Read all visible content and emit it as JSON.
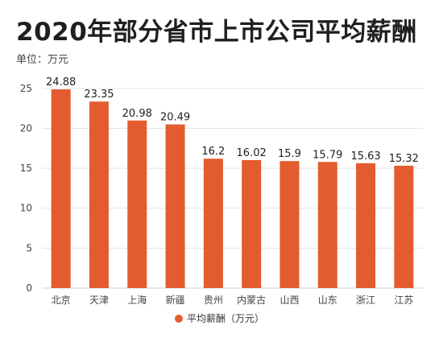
{
  "title": "2020年部分省市上市公司平均薪酬",
  "unit_label": "单位：万元",
  "colors": {
    "bar": "#e35c2f",
    "grid": "#e3e3e3",
    "axis_text": "#444444"
  },
  "chart_data": {
    "type": "bar",
    "title": "2020年部分省市上市公司平均薪酬",
    "categories": [
      "北京",
      "天津",
      "上海",
      "新疆",
      "贵州",
      "内蒙古",
      "山西",
      "山东",
      "浙江",
      "江苏"
    ],
    "value_labels": [
      "24.88",
      "23.35",
      "20.98",
      "20.49",
      "16.2",
      "16.02",
      "15.9",
      "15.79",
      "15.63",
      "15.32"
    ],
    "series": [
      {
        "name": "平均薪酬（万元）",
        "values": [
          24.88,
          23.35,
          20.98,
          20.49,
          16.2,
          16.02,
          15.9,
          15.79,
          15.63,
          15.32
        ]
      }
    ],
    "yticks": [
      0,
      5,
      10,
      15,
      20,
      25
    ],
    "ylim": [
      0,
      27
    ],
    "grid": true,
    "legend_position": "bottom-center"
  }
}
